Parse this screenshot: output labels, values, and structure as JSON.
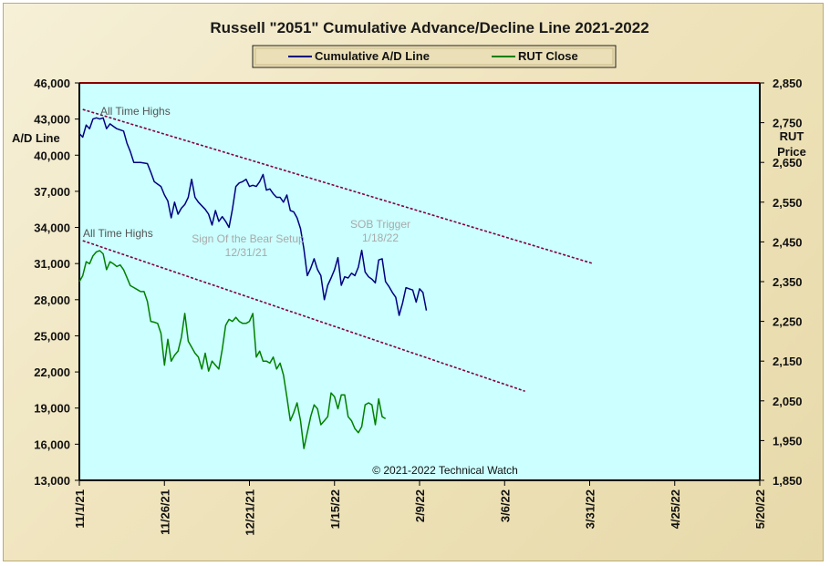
{
  "chart_data": {
    "type": "line",
    "title": "Russell \"2051\" Cumulative Advance/Decline Line 2021-2022",
    "legend_position": "top-center",
    "legend": [
      "Cumulative A/D Line",
      "RUT Close"
    ],
    "left_axis": {
      "label_lines": [
        "A/D Line"
      ],
      "range": [
        13000,
        46000
      ],
      "ticks": [
        "13,000",
        "16,000",
        "19,000",
        "22,000",
        "25,000",
        "28,000",
        "31,000",
        "34,000",
        "37,000",
        "40,000",
        "43,000",
        "46,000"
      ]
    },
    "right_axis": {
      "label_lines": [
        "RUT",
        "Price"
      ],
      "range": [
        1850,
        2850
      ],
      "ticks": [
        "1,850",
        "1,950",
        "2,050",
        "2,150",
        "2,250",
        "2,350",
        "2,450",
        "2,550",
        "2,650",
        "2,750",
        "2,850"
      ]
    },
    "x_axis": {
      "range_days": [
        0,
        200
      ],
      "tick_labels": [
        "11/1/21",
        "11/26/21",
        "12/21/21",
        "1/15/22",
        "2/9/22",
        "3/6/22",
        "3/31/22",
        "4/25/22",
        "5/20/22"
      ],
      "tick_days": [
        0,
        25,
        50,
        75,
        100,
        125,
        150,
        175,
        200
      ]
    },
    "grid": false,
    "colors": {
      "plot_bg": "#ccffff",
      "ad_line": "#000080",
      "rut_line": "#008000",
      "trend_line": "#800040",
      "top_border": "#8b0000"
    },
    "series": [
      {
        "name": "Cumulative A/D Line",
        "axis": "left",
        "points": [
          [
            0,
            41800
          ],
          [
            1,
            41500
          ],
          [
            2,
            42500
          ],
          [
            3,
            42200
          ],
          [
            4,
            43000
          ],
          [
            5,
            43100
          ],
          [
            6,
            43000
          ],
          [
            7,
            43100
          ],
          [
            8,
            42200
          ],
          [
            9,
            42600
          ],
          [
            10,
            42400
          ],
          [
            11,
            42200
          ],
          [
            13,
            42000
          ],
          [
            14,
            41000
          ],
          [
            15,
            40300
          ],
          [
            16,
            39400
          ],
          [
            18,
            39400
          ],
          [
            20,
            39300
          ],
          [
            21,
            38600
          ],
          [
            22,
            37800
          ],
          [
            23,
            37600
          ],
          [
            24,
            37400
          ],
          [
            25,
            36700
          ],
          [
            26,
            36200
          ],
          [
            27,
            34800
          ],
          [
            28,
            36100
          ],
          [
            29,
            35100
          ],
          [
            30,
            35600
          ],
          [
            31,
            35900
          ],
          [
            32,
            36500
          ],
          [
            33,
            38000
          ],
          [
            34,
            36500
          ],
          [
            35,
            36100
          ],
          [
            36,
            35800
          ],
          [
            37,
            35500
          ],
          [
            38,
            35100
          ],
          [
            39,
            34200
          ],
          [
            40,
            35400
          ],
          [
            41,
            34500
          ],
          [
            42,
            34900
          ],
          [
            43,
            34500
          ],
          [
            44,
            34000
          ],
          [
            45,
            35500
          ],
          [
            46,
            37400
          ],
          [
            47,
            37700
          ],
          [
            48,
            37800
          ],
          [
            49,
            38000
          ],
          [
            50,
            37400
          ],
          [
            51,
            37500
          ],
          [
            52,
            37400
          ],
          [
            53,
            37800
          ],
          [
            54,
            38400
          ],
          [
            55,
            37100
          ],
          [
            56,
            37200
          ],
          [
            57,
            36800
          ],
          [
            58,
            36500
          ],
          [
            59,
            36500
          ],
          [
            60,
            36100
          ],
          [
            61,
            36700
          ],
          [
            62,
            35400
          ],
          [
            63,
            35300
          ],
          [
            64,
            34800
          ],
          [
            65,
            33900
          ],
          [
            66,
            32200
          ],
          [
            67,
            30000
          ],
          [
            68,
            30600
          ],
          [
            69,
            31400
          ],
          [
            70,
            30500
          ],
          [
            71,
            30000
          ],
          [
            72,
            28000
          ],
          [
            73,
            29200
          ],
          [
            74,
            29800
          ],
          [
            75,
            30500
          ],
          [
            76,
            31500
          ],
          [
            77,
            29200
          ],
          [
            78,
            29900
          ],
          [
            79,
            29800
          ],
          [
            80,
            30200
          ],
          [
            81,
            30000
          ],
          [
            82,
            30700
          ],
          [
            83,
            32100
          ],
          [
            84,
            30300
          ],
          [
            85,
            29900
          ],
          [
            86,
            29700
          ],
          [
            87,
            29400
          ],
          [
            88,
            31300
          ],
          [
            89,
            31400
          ],
          [
            90,
            29500
          ],
          [
            91,
            29100
          ],
          [
            92,
            28600
          ],
          [
            93,
            28200
          ],
          [
            94,
            26700
          ],
          [
            95,
            27700
          ],
          [
            96,
            29000
          ],
          [
            97,
            28900
          ],
          [
            98,
            28800
          ],
          [
            99,
            27800
          ],
          [
            100,
            28900
          ],
          [
            101,
            28600
          ],
          [
            102,
            27100
          ]
        ]
      },
      {
        "name": "RUT Close",
        "axis": "right",
        "points": [
          [
            0,
            2350
          ],
          [
            1,
            2365
          ],
          [
            2,
            2400
          ],
          [
            3,
            2395
          ],
          [
            4,
            2415
          ],
          [
            5,
            2425
          ],
          [
            6,
            2428
          ],
          [
            7,
            2420
          ],
          [
            8,
            2380
          ],
          [
            9,
            2400
          ],
          [
            10,
            2395
          ],
          [
            11,
            2388
          ],
          [
            12,
            2392
          ],
          [
            13,
            2380
          ],
          [
            14,
            2360
          ],
          [
            15,
            2340
          ],
          [
            16,
            2335
          ],
          [
            17,
            2330
          ],
          [
            18,
            2325
          ],
          [
            19,
            2325
          ],
          [
            20,
            2300
          ],
          [
            21,
            2250
          ],
          [
            22,
            2248
          ],
          [
            23,
            2245
          ],
          [
            24,
            2220
          ],
          [
            25,
            2140
          ],
          [
            26,
            2205
          ],
          [
            27,
            2150
          ],
          [
            28,
            2165
          ],
          [
            29,
            2175
          ],
          [
            30,
            2210
          ],
          [
            31,
            2270
          ],
          [
            32,
            2200
          ],
          [
            33,
            2185
          ],
          [
            34,
            2170
          ],
          [
            35,
            2160
          ],
          [
            36,
            2130
          ],
          [
            37,
            2170
          ],
          [
            38,
            2125
          ],
          [
            39,
            2150
          ],
          [
            40,
            2140
          ],
          [
            41,
            2130
          ],
          [
            42,
            2180
          ],
          [
            43,
            2240
          ],
          [
            44,
            2255
          ],
          [
            45,
            2250
          ],
          [
            46,
            2260
          ],
          [
            47,
            2250
          ],
          [
            48,
            2245
          ],
          [
            49,
            2245
          ],
          [
            50,
            2250
          ],
          [
            51,
            2270
          ],
          [
            52,
            2160
          ],
          [
            53,
            2175
          ],
          [
            54,
            2150
          ],
          [
            55,
            2150
          ],
          [
            56,
            2145
          ],
          [
            57,
            2160
          ],
          [
            58,
            2130
          ],
          [
            59,
            2145
          ],
          [
            60,
            2115
          ],
          [
            61,
            2060
          ],
          [
            62,
            2000
          ],
          [
            63,
            2020
          ],
          [
            64,
            2045
          ],
          [
            65,
            2000
          ],
          [
            66,
            1930
          ],
          [
            67,
            1970
          ],
          [
            68,
            2010
          ],
          [
            69,
            2040
          ],
          [
            70,
            2030
          ],
          [
            71,
            1990
          ],
          [
            72,
            2000
          ],
          [
            73,
            2010
          ],
          [
            74,
            2070
          ],
          [
            75,
            2060
          ],
          [
            76,
            2030
          ],
          [
            77,
            2065
          ],
          [
            78,
            2065
          ],
          [
            79,
            2010
          ],
          [
            80,
            2000
          ],
          [
            81,
            1980
          ],
          [
            82,
            1970
          ],
          [
            83,
            1985
          ],
          [
            84,
            2040
          ],
          [
            85,
            2045
          ],
          [
            86,
            2040
          ],
          [
            87,
            1990
          ],
          [
            88,
            2055
          ],
          [
            89,
            2010
          ],
          [
            90,
            2005
          ]
        ]
      }
    ],
    "trend_lines": [
      {
        "from": [
          1,
          43800
        ],
        "to": [
          151,
          31000
        ],
        "axis": "left"
      },
      {
        "from": [
          1,
          32900
        ],
        "to": [
          131,
          20400
        ],
        "axis": "left"
      }
    ],
    "annotations": [
      {
        "text": "All Time Highs",
        "style": "dark"
      },
      {
        "text": "All Time Highs",
        "style": "dark"
      },
      {
        "text": "Sign Of the Bear Setup",
        "style": "light"
      },
      {
        "text": "12/31/21",
        "style": "light"
      },
      {
        "text": "SOB Trigger",
        "style": "light"
      },
      {
        "text": "1/18/22",
        "style": "light"
      },
      {
        "text": "© 2021-2022  Technical Watch",
        "style": "copyright"
      }
    ]
  }
}
